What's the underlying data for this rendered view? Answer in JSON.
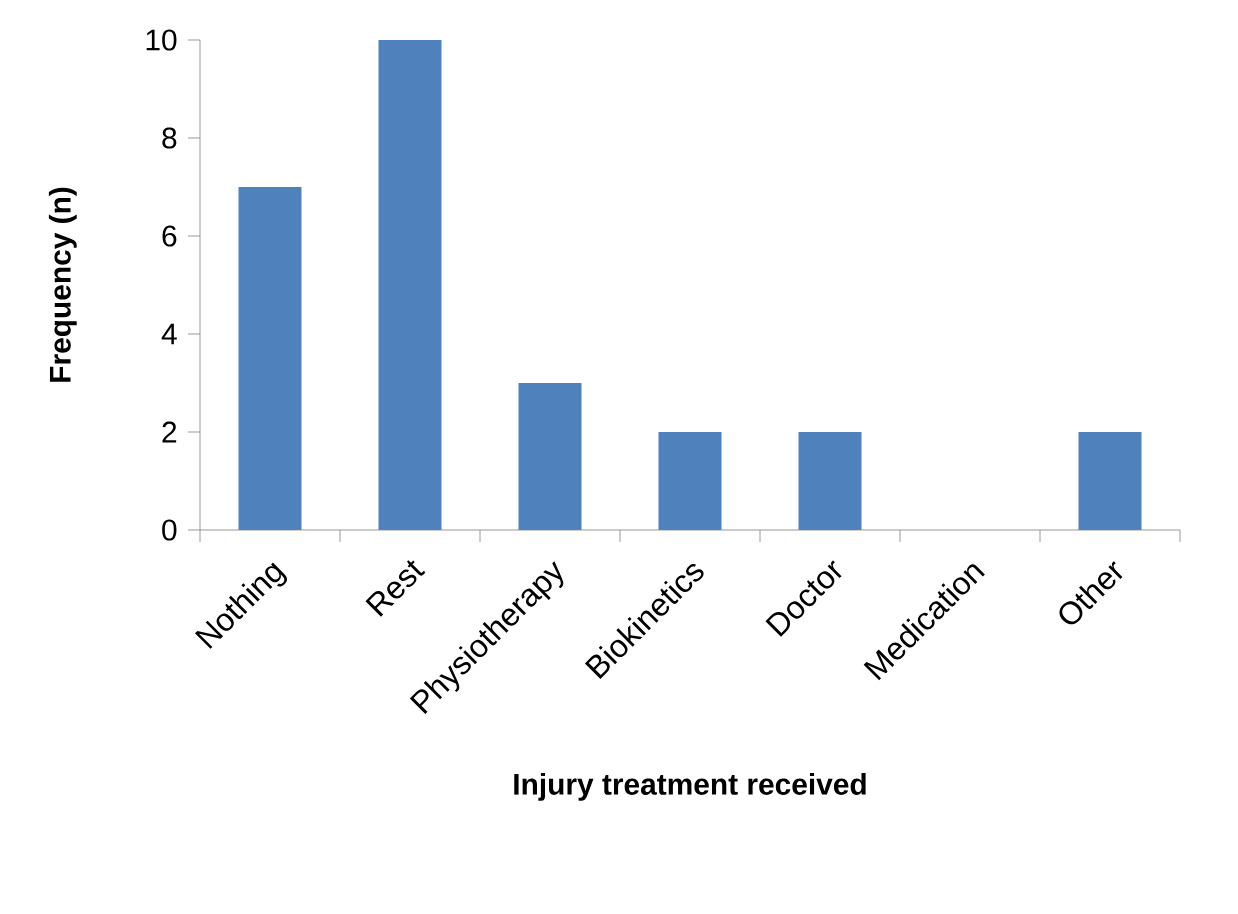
{
  "chart_data": {
    "type": "bar",
    "xlabel": "Injury treatment received",
    "ylabel": "Frequency (n)",
    "categories": [
      "Nothing",
      "Rest",
      "Physiotherapy",
      "Biokinetics",
      "Doctor",
      "Medication",
      "Other"
    ],
    "values": [
      7,
      10,
      3,
      2,
      2,
      0,
      2
    ],
    "color": "#4f81bd",
    "ylim": [
      0,
      10
    ],
    "yticks": [
      0,
      2,
      4,
      6,
      8,
      10
    ]
  }
}
